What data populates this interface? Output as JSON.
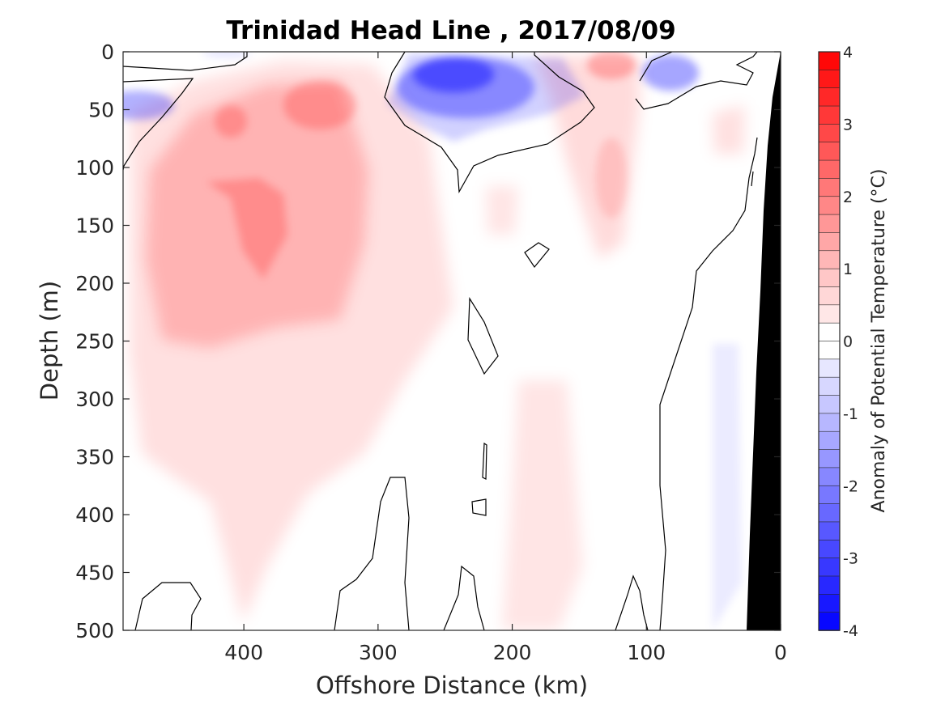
{
  "chart_data": {
    "type": "heatmap",
    "title": "Trinidad Head Line , 2017/08/09",
    "xlabel": "Offshore Distance (km)",
    "ylabel": "Depth (m)",
    "xlim": [
      490,
      0
    ],
    "ylim": [
      0,
      500
    ],
    "x_ticks": [
      "400",
      "300",
      "200",
      "100",
      "0"
    ],
    "y_ticks": [
      "0",
      "50",
      "100",
      "150",
      "200",
      "250",
      "300",
      "350",
      "400",
      "450",
      "500"
    ],
    "colorbar": {
      "label": "Anomaly of Potential Temperature (°C)",
      "range": [
        -4,
        4
      ],
      "step": 0.25,
      "ticks": [
        "4",
        "3",
        "2",
        "1",
        "0",
        "-1",
        "-2",
        "-3",
        "-4"
      ]
    },
    "colormap": {
      "negative": "#0000ff",
      "zero": "#ffffff",
      "positive": "#ff0000"
    },
    "bathymetry_color": "#000000",
    "grid": false,
    "features": [
      {
        "name": "cold core",
        "x": 250,
        "depth": 20,
        "anomaly": -2.9
      },
      {
        "name": "cold patch",
        "x": 80,
        "depth": 20,
        "anomaly": -1.2
      },
      {
        "name": "cold patch",
        "x": 475,
        "depth": 45,
        "anomaly": -1.0
      },
      {
        "name": "warm patch",
        "x": 335,
        "depth": 45,
        "anomaly": 1.8
      },
      {
        "name": "warm patch",
        "x": 122,
        "depth": 10,
        "anomaly": 1.7
      },
      {
        "name": "warm patch",
        "x": 410,
        "depth": 65,
        "anomaly": 1.6
      },
      {
        "name": "warm patch",
        "x": 385,
        "depth": 180,
        "anomaly": 1.3
      }
    ]
  }
}
